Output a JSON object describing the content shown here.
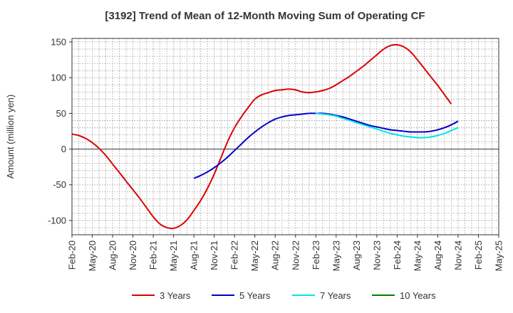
{
  "chart_data": {
    "type": "line",
    "title": "[3192]  Trend of Mean of 12-Month Moving Sum of Operating CF",
    "xlabel": "",
    "ylabel": "Amount (million yen)",
    "ylim": [
      -120,
      155
    ],
    "yticks": [
      150,
      100,
      50,
      0,
      -50,
      -100
    ],
    "xticks": [
      "Feb-20",
      "May-20",
      "Aug-20",
      "Nov-20",
      "Feb-21",
      "May-21",
      "Aug-21",
      "Nov-21",
      "Feb-22",
      "May-22",
      "Aug-22",
      "Nov-22",
      "Feb-23",
      "May-23",
      "Aug-23",
      "Nov-23",
      "Feb-24",
      "May-24",
      "Aug-24",
      "Nov-24",
      "Feb-25",
      "May-25"
    ],
    "grid": true,
    "legend_position": "bottom",
    "series": [
      {
        "name": "3 Years",
        "color": "#dd0000",
        "start": "Feb-20",
        "values": [
          21,
          19,
          15,
          9,
          1,
          -9,
          -21,
          -33,
          -45,
          -57,
          -69,
          -82,
          -95,
          -105,
          -110,
          -111,
          -107,
          -99,
          -86,
          -72,
          -55,
          -35,
          -12,
          11,
          30,
          45,
          58,
          70,
          76,
          79,
          82,
          83,
          84,
          83,
          80,
          79,
          80,
          82,
          85,
          90,
          96,
          102,
          109,
          116,
          124,
          132,
          140,
          145,
          146,
          143,
          136,
          125,
          113,
          101,
          89,
          76,
          63
        ]
      },
      {
        "name": "5 Years",
        "color": "#0000cc",
        "start": "Aug-21",
        "values": [
          -41,
          -37,
          -32,
          -26,
          -19,
          -11,
          -2,
          7,
          16,
          24,
          31,
          37,
          42,
          45,
          47,
          48,
          49,
          50,
          50,
          50,
          49,
          47,
          45,
          42,
          39,
          36,
          33,
          31,
          29,
          27,
          26,
          25,
          24,
          24,
          24,
          25,
          27,
          30,
          34,
          39
        ]
      },
      {
        "name": "7 Years",
        "color": "#00e5e5",
        "start": "Feb-23",
        "values": [
          50,
          49,
          48,
          46,
          43,
          40,
          37,
          34,
          31,
          28,
          25,
          22,
          20,
          18,
          17,
          16,
          16,
          17,
          19,
          22,
          26,
          30
        ]
      },
      {
        "name": "10 Years",
        "color": "#008000",
        "start": "Feb-20",
        "values": []
      }
    ]
  }
}
